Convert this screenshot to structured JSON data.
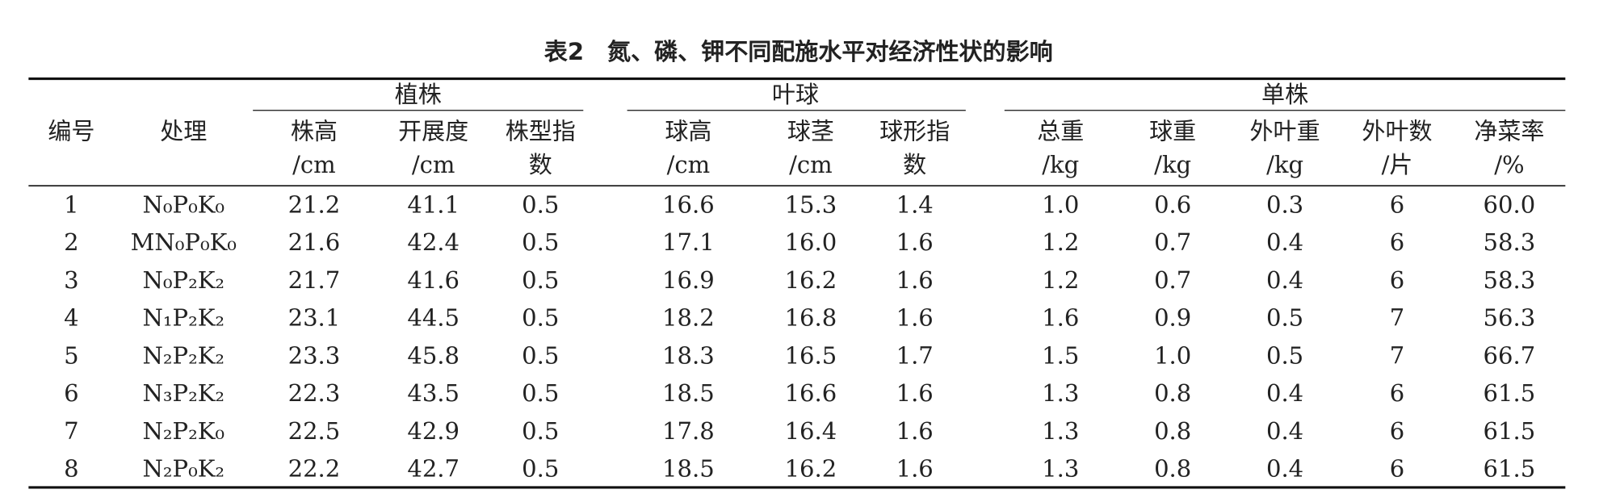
{
  "title": "表2　氮、磷、钾不同配施水平对经济性状的影响",
  "groups": [
    "植株",
    "叶球",
    "单株"
  ],
  "columns": [
    [
      "编号"
    ],
    [
      "处理"
    ],
    [
      "株高",
      "/cm"
    ],
    [
      "开展度",
      "/cm"
    ],
    [
      "株型指",
      "数"
    ],
    [
      "球高",
      "/cm"
    ],
    [
      "球茎",
      "/cm"
    ],
    [
      "球形指",
      "数"
    ],
    [
      "总重",
      "/kg"
    ],
    [
      "球重",
      "/kg"
    ],
    [
      "外叶重",
      "/kg"
    ],
    [
      "外叶数",
      "/片"
    ],
    [
      "净菜率",
      "/%"
    ]
  ],
  "rows": [
    [
      "1",
      "N₀P₀K₀",
      "21.2",
      "41.1",
      "0.5",
      "16.6",
      "15.3",
      "1.4",
      "1.0",
      "0.6",
      "0.3",
      "6",
      "60.0"
    ],
    [
      "2",
      "MN₀P₀K₀",
      "21.6",
      "42.4",
      "0.5",
      "17.1",
      "16.0",
      "1.6",
      "1.2",
      "0.7",
      "0.4",
      "6",
      "58.3"
    ],
    [
      "3",
      "N₀P₂K₂",
      "21.7",
      "41.6",
      "0.5",
      "16.9",
      "16.2",
      "1.6",
      "1.2",
      "0.7",
      "0.4",
      "6",
      "58.3"
    ],
    [
      "4",
      "N₁P₂K₂",
      "23.1",
      "44.5",
      "0.5",
      "18.2",
      "16.8",
      "1.6",
      "1.6",
      "0.9",
      "0.5",
      "7",
      "56.3"
    ],
    [
      "5",
      "N₂P₂K₂",
      "23.3",
      "45.8",
      "0.5",
      "18.3",
      "16.5",
      "1.7",
      "1.5",
      "1.0",
      "0.5",
      "7",
      "66.7"
    ],
    [
      "6",
      "N₃P₂K₂",
      "22.3",
      "43.5",
      "0.5",
      "18.5",
      "16.6",
      "1.6",
      "1.3",
      "0.8",
      "0.4",
      "6",
      "61.5"
    ],
    [
      "7",
      "N₂P₂K₀",
      "22.5",
      "42.9",
      "0.5",
      "17.8",
      "16.4",
      "1.6",
      "1.3",
      "0.8",
      "0.4",
      "6",
      "61.5"
    ],
    [
      "8",
      "N₂P₀K₂",
      "22.2",
      "42.7",
      "0.5",
      "18.5",
      "16.2",
      "1.6",
      "1.3",
      "0.8",
      "0.4",
      "6",
      "61.5"
    ]
  ]
}
